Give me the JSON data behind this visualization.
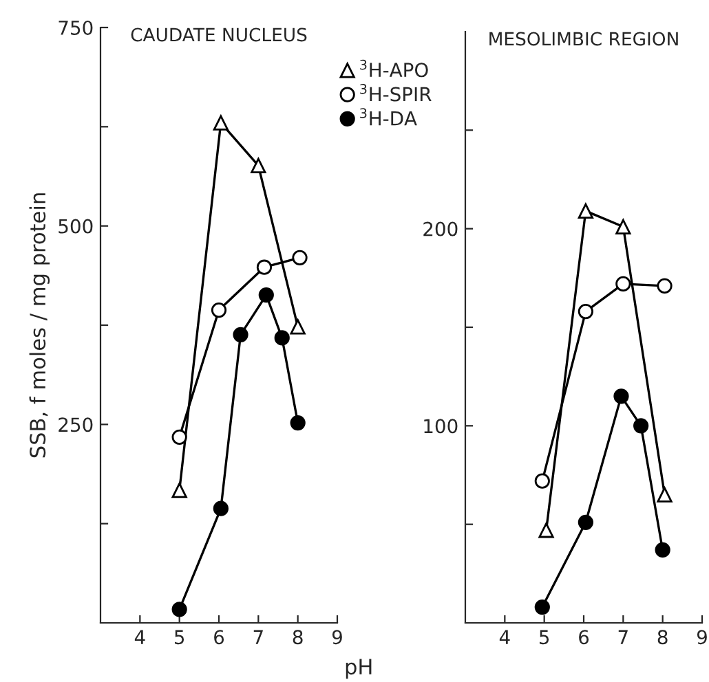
{
  "chart_data": [
    {
      "type": "line",
      "title": "CAUDATE NUCLEUS",
      "ylabel": "SSB, f moles / mg protein",
      "xlim": [
        3,
        9
      ],
      "xticks": [
        4,
        5,
        6,
        7,
        8,
        9
      ],
      "ylim": [
        0,
        750
      ],
      "yticks": [
        {
          "value": 125,
          "label": null
        },
        250,
        {
          "value": 375,
          "label": null
        },
        500,
        {
          "value": 625,
          "label": null
        },
        750
      ],
      "grid": false,
      "legend": "top right",
      "series": [
        {
          "name": "$^{3}$H-APO",
          "color": "#000000",
          "marker": "triangle",
          "x": [
            5,
            6.05,
            7.0,
            8.0
          ],
          "values": [
            167,
            630,
            576,
            373
          ]
        },
        {
          "name": "$^{3}$H-SPIR",
          "color": "#000000",
          "marker": "circle",
          "x": [
            5,
            6.0,
            7.15,
            8.05
          ],
          "values": [
            234,
            394,
            448,
            460
          ]
        },
        {
          "name": "$^{3}$H-DA",
          "color": "#000000",
          "marker": "circle",
          "x": [
            5,
            6.05,
            6.55,
            7.2,
            7.6,
            8.0
          ],
          "values": [
            17,
            144,
            363,
            413,
            359,
            252
          ]
        }
      ]
    },
    {
      "type": "line",
      "title": "MESOLIMBIC REGION",
      "xlabel": "pH",
      "xlim": [
        3,
        9
      ],
      "xticks": [
        4,
        5,
        6,
        7,
        8,
        9
      ],
      "ylim": [
        0,
        300
      ],
      "yticks": [
        {
          "value": 50,
          "label": null
        },
        100,
        {
          "value": 150,
          "label": null
        },
        200,
        {
          "value": 250,
          "label": null
        }
      ],
      "grid": false,
      "series": [
        {
          "color": "#000000",
          "marker": "triangle",
          "x": [
            5.05,
            6.05,
            7.0,
            8.05
          ],
          "values": [
            47,
            209,
            201,
            65
          ]
        },
        {
          "color": "#000000",
          "marker": "circle",
          "x": [
            4.95,
            6.05,
            7.0,
            8.05
          ],
          "values": [
            72,
            158,
            172,
            171
          ]
        },
        {
          "color": "#000000",
          "marker": "circle",
          "x": [
            4.95,
            6.05,
            6.95,
            7.45,
            8.0
          ],
          "values": [
            8,
            51,
            115,
            100,
            37
          ]
        }
      ]
    }
  ]
}
